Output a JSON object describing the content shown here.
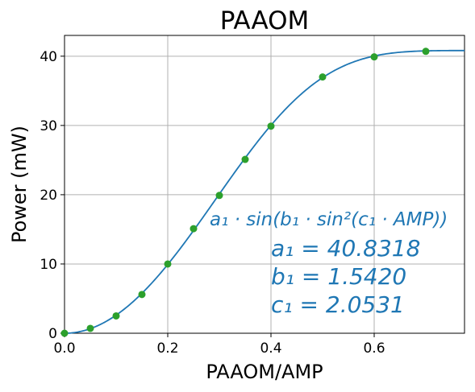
{
  "chart_data": {
    "type": "scatter",
    "title": "PAAOM",
    "xlabel": "PAAOM/AMP",
    "ylabel": "Power (mW)",
    "xlim": [
      0.0,
      0.775
    ],
    "ylim": [
      0,
      43
    ],
    "xticks": [
      0.0,
      0.2,
      0.4,
      0.6
    ],
    "yticks": [
      0,
      10,
      20,
      30,
      40
    ],
    "xtick_labels": [
      "0.0",
      "0.2",
      "0.4",
      "0.6"
    ],
    "ytick_labels": [
      "0",
      "10",
      "20",
      "30",
      "40"
    ],
    "grid": true,
    "series": [
      {
        "kind": "points",
        "color": "#2ca02c",
        "x": [
          0.0,
          0.05,
          0.1,
          0.15,
          0.2,
          0.25,
          0.3,
          0.35,
          0.4,
          0.5,
          0.6,
          0.7
        ],
        "y": [
          0.0,
          0.7,
          2.5,
          5.6,
          10.0,
          15.1,
          19.9,
          25.1,
          29.9,
          37.0,
          39.9,
          40.7
        ]
      },
      {
        "kind": "fit-line",
        "color": "#1f77b4",
        "model": "a*sin(b*sin^2(c*x))",
        "a": 40.8318,
        "b": 1.542,
        "c": 2.0531
      }
    ],
    "annotation": {
      "formula": "a₁ · sin(b₁ · sin²(c₁ · AMP))",
      "a1": "a₁ = 40.8318",
      "b1": "b₁ = 1.5420",
      "c1": "c₁ = 2.0531"
    }
  }
}
